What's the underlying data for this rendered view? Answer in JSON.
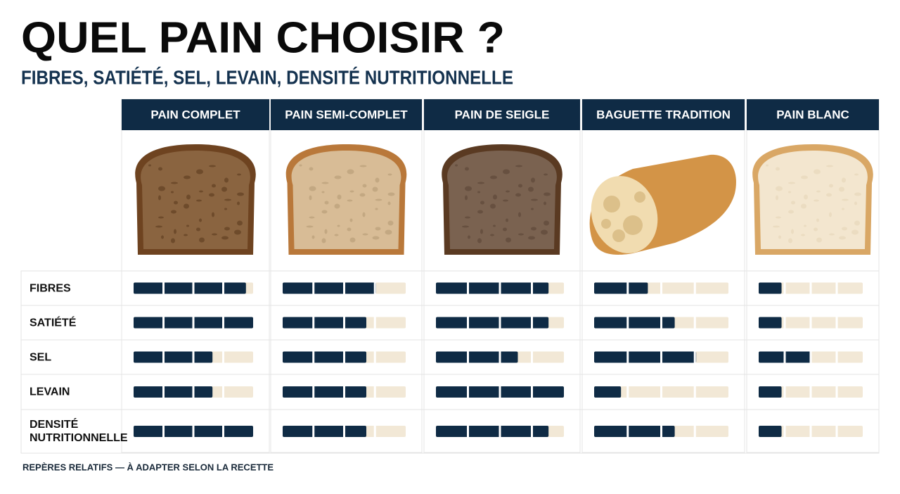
{
  "chart_data": {
    "type": "bar",
    "title": "QUEL PAIN CHOISIR ?",
    "subtitle": "FIBRES, SATIÉTÉ, SEL, LEVAIN, DENSITÉ NUTRITIONNELLE",
    "note": "REPÈRES RELATIFS — À ADAPTER SELON LA RECETTE",
    "categories": [
      "FIBRES",
      "SATIÉTÉ",
      "SEL",
      "LEVAIN",
      "DENSITÉ NUTRITIONNELLE"
    ],
    "xlim": [
      0,
      5
    ],
    "track_color": "#f2e8d6",
    "series": [
      {
        "name": "PAIN COMPLET",
        "color": "#0f2b45",
        "values": [
          4.7,
          5,
          3.3,
          3.3,
          5
        ]
      },
      {
        "name": "PAIN SEMI-COMPLET",
        "color": "#0f2b45",
        "values": [
          3.8,
          3.4,
          3.4,
          3.4,
          3.4
        ]
      },
      {
        "name": "PAIN DE SEIGLE",
        "color": "#0f2b45",
        "values": [
          4.4,
          4.4,
          3.2,
          5,
          4.4
        ]
      },
      {
        "name": "BAGUETTE TRADITION",
        "color": "#0f2b45",
        "values": [
          2,
          3,
          3.8,
          1,
          3
        ]
      },
      {
        "name": "PAIN BLANC",
        "color": "#0f2b45",
        "values": [
          1.1,
          1.1,
          2.5,
          1.1,
          1.1
        ]
      }
    ]
  }
}
